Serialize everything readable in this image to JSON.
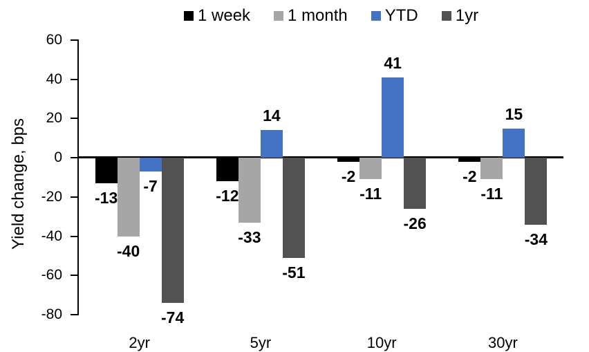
{
  "chart_data": {
    "type": "bar",
    "categories": [
      "2yr",
      "5yr",
      "10yr",
      "30yr"
    ],
    "series": [
      {
        "name": "1 week",
        "color": "#000000",
        "values": [
          -13,
          -12,
          -2,
          -2
        ]
      },
      {
        "name": "1 month",
        "color": "#A6A6A6",
        "values": [
          -40,
          -33,
          -11,
          -11
        ]
      },
      {
        "name": "YTD",
        "color": "#4472C4",
        "values": [
          -7,
          14,
          41,
          15
        ]
      },
      {
        "name": "1yr",
        "color": "#525252",
        "values": [
          -74,
          -51,
          -26,
          -34
        ]
      }
    ],
    "title": "",
    "xlabel": "",
    "ylabel": "Yield change, bps",
    "ylim": [
      -80,
      60
    ],
    "yticks": [
      60,
      40,
      20,
      0,
      -20,
      -40,
      -60,
      -80
    ],
    "grid": false,
    "legend_position": "top",
    "data_labels": true,
    "axis_color": "#000000",
    "background_color": "#FFFFFF"
  }
}
